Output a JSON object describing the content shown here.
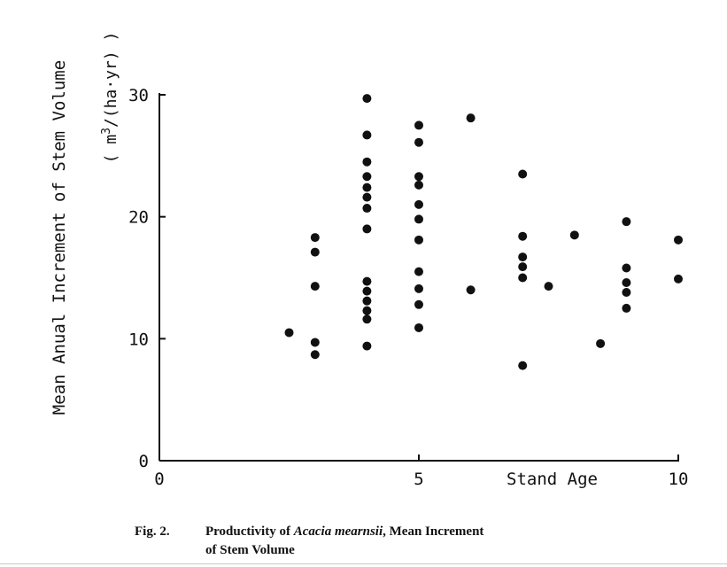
{
  "chart_data": {
    "type": "scatter",
    "title": "",
    "xlabel": "Stand Age",
    "ylabel": "Mean Anual Increment of Stem Volume",
    "yunit_open": "( m",
    "yunit_sup": "3",
    "yunit_close": "/(ha·yr) )",
    "xlim": [
      0,
      10
    ],
    "ylim": [
      0,
      30
    ],
    "xticks": [
      0,
      5,
      10
    ],
    "xtick_labels": [
      "0",
      "5",
      "10"
    ],
    "yticks": [
      0,
      10,
      20,
      30
    ],
    "ytick_labels": [
      "0",
      "10",
      "20",
      "30"
    ],
    "marker_color": "#111111",
    "points": [
      {
        "x": 2.5,
        "y": 10.5
      },
      {
        "x": 3.0,
        "y": 18.3
      },
      {
        "x": 3.0,
        "y": 17.1
      },
      {
        "x": 3.0,
        "y": 14.3
      },
      {
        "x": 3.0,
        "y": 9.7
      },
      {
        "x": 3.0,
        "y": 8.7
      },
      {
        "x": 4.0,
        "y": 29.7
      },
      {
        "x": 4.0,
        "y": 26.7
      },
      {
        "x": 4.0,
        "y": 24.5
      },
      {
        "x": 4.0,
        "y": 23.3
      },
      {
        "x": 4.0,
        "y": 22.4
      },
      {
        "x": 4.0,
        "y": 21.6
      },
      {
        "x": 4.0,
        "y": 20.7
      },
      {
        "x": 4.0,
        "y": 19.0
      },
      {
        "x": 4.0,
        "y": 14.7
      },
      {
        "x": 4.0,
        "y": 13.9
      },
      {
        "x": 4.0,
        "y": 13.1
      },
      {
        "x": 4.0,
        "y": 12.3
      },
      {
        "x": 4.0,
        "y": 11.6
      },
      {
        "x": 4.0,
        "y": 9.4
      },
      {
        "x": 5.0,
        "y": 27.5
      },
      {
        "x": 5.0,
        "y": 26.1
      },
      {
        "x": 5.0,
        "y": 23.3
      },
      {
        "x": 5.0,
        "y": 22.6
      },
      {
        "x": 5.0,
        "y": 21.0
      },
      {
        "x": 5.0,
        "y": 19.8
      },
      {
        "x": 5.0,
        "y": 18.1
      },
      {
        "x": 5.0,
        "y": 15.5
      },
      {
        "x": 5.0,
        "y": 14.1
      },
      {
        "x": 5.0,
        "y": 12.8
      },
      {
        "x": 5.0,
        "y": 10.9
      },
      {
        "x": 6.0,
        "y": 28.1
      },
      {
        "x": 6.0,
        "y": 14.0
      },
      {
        "x": 7.0,
        "y": 23.5
      },
      {
        "x": 7.0,
        "y": 18.4
      },
      {
        "x": 7.0,
        "y": 16.7
      },
      {
        "x": 7.0,
        "y": 15.9
      },
      {
        "x": 7.0,
        "y": 15.0
      },
      {
        "x": 7.0,
        "y": 7.8
      },
      {
        "x": 7.5,
        "y": 14.3
      },
      {
        "x": 8.0,
        "y": 18.5
      },
      {
        "x": 8.5,
        "y": 9.6
      },
      {
        "x": 9.0,
        "y": 19.6
      },
      {
        "x": 9.0,
        "y": 15.8
      },
      {
        "x": 9.0,
        "y": 14.6
      },
      {
        "x": 9.0,
        "y": 13.8
      },
      {
        "x": 9.0,
        "y": 12.5
      },
      {
        "x": 10.0,
        "y": 18.1
      },
      {
        "x": 10.0,
        "y": 14.9
      }
    ]
  },
  "caption": {
    "label": "Fig. 2.",
    "text_before": "Productivity of ",
    "species": "Acacia mearnsii",
    "text_after": ", Mean Increment",
    "line2": "of Stem Volume"
  }
}
